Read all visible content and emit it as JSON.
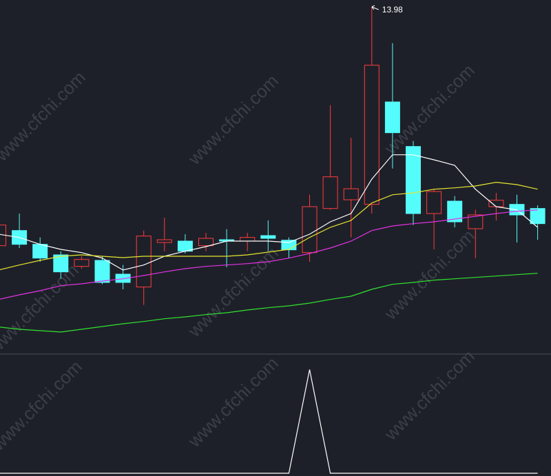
{
  "watermark": "www.cfchi.com",
  "chart_data": [
    {
      "type": "candlestick",
      "up_color": "#ff3c3c",
      "down_color": "#54fcfc",
      "ylim": [
        6.48,
        14.13
      ],
      "open": [
        8.78,
        9.11,
        8.81,
        8.58,
        8.33,
        8.46,
        8.16,
        7.88,
        8.85,
        8.88,
        8.78,
        8.91,
        8.88,
        9.0,
        8.9,
        8.63,
        9.59,
        9.78,
        9.68,
        11.91,
        10.94,
        9.48,
        9.75,
        9.15,
        9.63,
        9.68,
        9.59
      ],
      "high": [
        9.26,
        9.48,
        8.96,
        8.66,
        8.55,
        8.55,
        8.36,
        9.11,
        9.39,
        9.03,
        9.06,
        9.14,
        9.06,
        9.33,
        8.96,
        9.89,
        11.84,
        11.13,
        13.98,
        13.19,
        11.06,
        10.01,
        9.86,
        9.56,
        9.93,
        9.89,
        9.66
      ],
      "low": [
        8.73,
        8.73,
        8.43,
        8.06,
        8.28,
        7.94,
        7.83,
        7.49,
        8.66,
        8.61,
        8.66,
        8.31,
        8.66,
        8.66,
        8.51,
        8.43,
        9.56,
        8.96,
        9.48,
        10.46,
        9.23,
        8.7,
        9.18,
        8.51,
        9.33,
        8.85,
        8.91
      ],
      "close": [
        9.23,
        8.81,
        8.51,
        8.21,
        8.48,
        7.98,
        7.98,
        8.99,
        8.91,
        8.66,
        8.94,
        8.88,
        8.96,
        8.94,
        8.69,
        9.63,
        10.28,
        10.02,
        12.71,
        11.24,
        9.48,
        9.96,
        9.3,
        9.45,
        9.77,
        9.45,
        9.26
      ],
      "lines": [
        {
          "color": "#ffffff",
          "values": [
            9.03,
            8.96,
            8.81,
            8.7,
            8.63,
            8.51,
            8.25,
            8.36,
            8.55,
            8.66,
            8.76,
            8.88,
            8.88,
            8.88,
            8.85,
            9.03,
            9.3,
            9.48,
            10.23,
            10.76,
            10.76,
            10.65,
            10.53,
            10.01,
            9.63,
            9.56,
            9.18
          ]
        },
        {
          "color": "#e6e62e",
          "values": [
            8.25,
            8.36,
            8.46,
            8.55,
            8.58,
            8.55,
            8.52,
            8.55,
            8.55,
            8.55,
            8.55,
            8.55,
            8.58,
            8.64,
            8.7,
            8.96,
            9.18,
            9.33,
            9.71,
            9.89,
            9.93,
            10.01,
            10.04,
            10.08,
            10.16,
            10.11,
            10.01
          ]
        },
        {
          "color": "#e632e6",
          "values": [
            7.61,
            7.71,
            7.8,
            7.91,
            7.95,
            8.01,
            8.06,
            8.13,
            8.21,
            8.28,
            8.33,
            8.36,
            8.39,
            8.43,
            8.51,
            8.61,
            8.73,
            8.88,
            9.11,
            9.21,
            9.26,
            9.3,
            9.36,
            9.42,
            9.48,
            9.53,
            9.56
          ]
        },
        {
          "color": "#2ee62e",
          "values": [
            7.01,
            6.96,
            6.93,
            6.9,
            6.96,
            7.02,
            7.08,
            7.13,
            7.19,
            7.23,
            7.28,
            7.32,
            7.38,
            7.43,
            7.47,
            7.53,
            7.61,
            7.68,
            7.83,
            7.94,
            7.98,
            8.03,
            8.06,
            8.09,
            8.12,
            8.15,
            8.18
          ]
        }
      ]
    },
    {
      "type": "line",
      "color": "#ffffff",
      "ylim": [
        0,
        1.11
      ],
      "values": [
        0,
        0,
        0,
        0,
        0,
        0,
        0,
        0,
        0,
        0,
        0,
        0,
        0,
        0,
        0,
        1,
        0,
        0,
        0,
        0,
        0,
        0,
        0,
        0,
        0,
        0,
        0
      ]
    }
  ]
}
